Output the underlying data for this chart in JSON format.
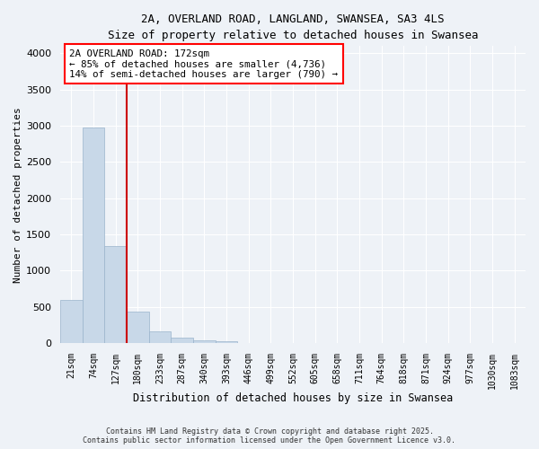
{
  "title_line1": "2A, OVERLAND ROAD, LANGLAND, SWANSEA, SA3 4LS",
  "title_line2": "Size of property relative to detached houses in Swansea",
  "xlabel": "Distribution of detached houses by size in Swansea",
  "ylabel": "Number of detached properties",
  "bar_labels": [
    "21sqm",
    "74sqm",
    "127sqm",
    "180sqm",
    "233sqm",
    "287sqm",
    "340sqm",
    "393sqm",
    "446sqm",
    "499sqm",
    "552sqm",
    "605sqm",
    "658sqm",
    "711sqm",
    "764sqm",
    "818sqm",
    "871sqm",
    "924sqm",
    "977sqm",
    "1030sqm",
    "1083sqm"
  ],
  "bar_values": [
    600,
    2970,
    1340,
    430,
    165,
    75,
    40,
    30,
    0,
    0,
    0,
    0,
    0,
    0,
    0,
    0,
    0,
    0,
    0,
    0,
    0
  ],
  "bar_color": "#c8d8e8",
  "bar_edgecolor": "#9ab4cc",
  "vline_color": "#cc0000",
  "vline_bin": 3,
  "annotation_text": "2A OVERLAND ROAD: 172sqm\n← 85% of detached houses are smaller (4,736)\n14% of semi-detached houses are larger (790) →",
  "ylim": [
    0,
    4100
  ],
  "yticks": [
    0,
    500,
    1000,
    1500,
    2000,
    2500,
    3000,
    3500,
    4000
  ],
  "background_color": "#eef2f7",
  "grid_color": "#ffffff",
  "footer_line1": "Contains HM Land Registry data © Crown copyright and database right 2025.",
  "footer_line2": "Contains public sector information licensed under the Open Government Licence v3.0."
}
